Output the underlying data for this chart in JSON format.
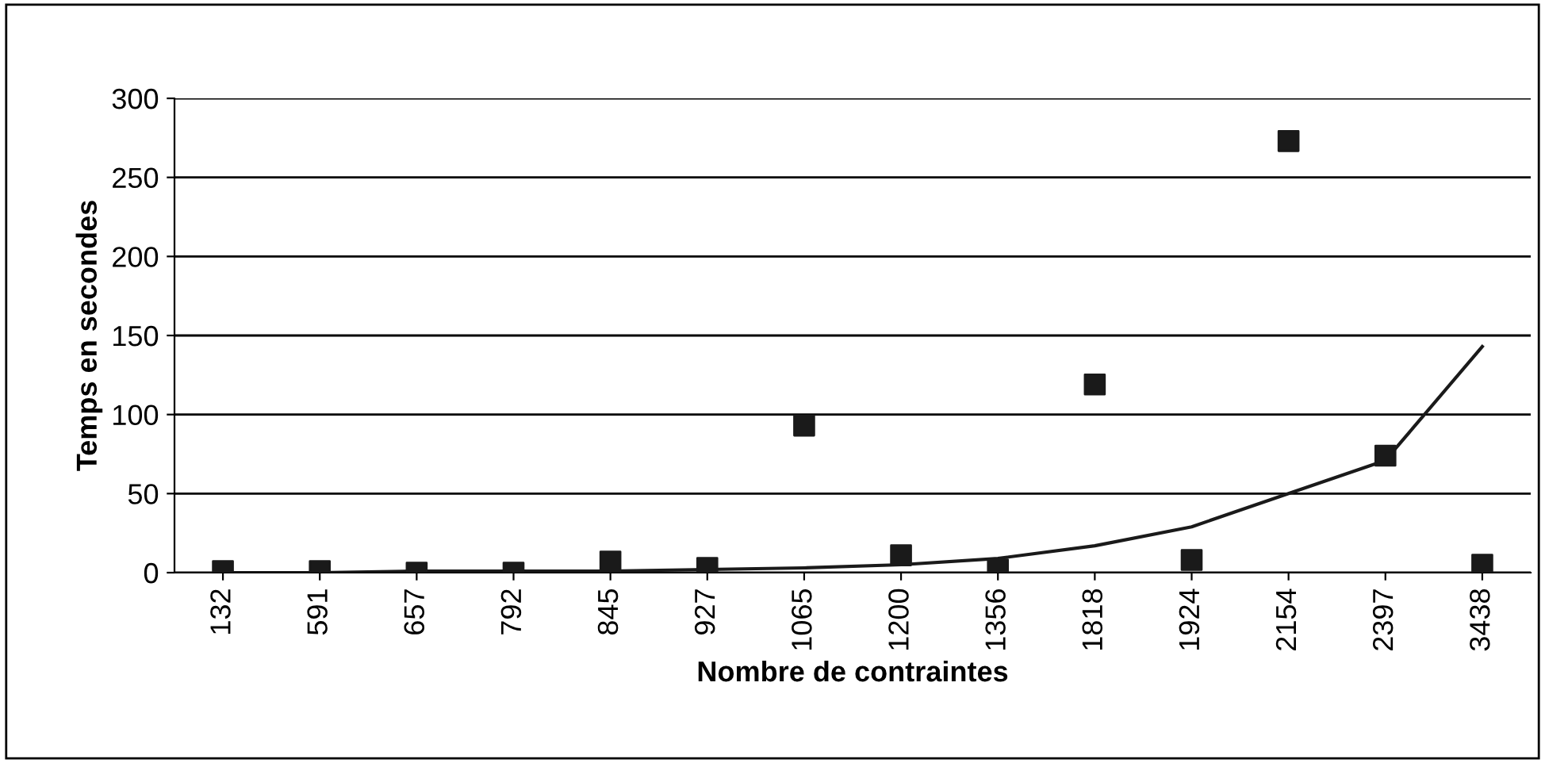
{
  "chart_data": {
    "type": "scatter",
    "xlabel": "Nombre de contraintes",
    "ylabel": "Temps en secondes",
    "categories": [
      "132",
      "591",
      "657",
      "792",
      "845",
      "927",
      "1065",
      "1200",
      "1356",
      "1818",
      "1924",
      "2154",
      "2397",
      "3438"
    ],
    "series": [
      {
        "color": "#1a1a1a",
        "marker": "square",
        "values": [
          1,
          1,
          0,
          0,
          7,
          3,
          93,
          11,
          2,
          119,
          8,
          273,
          74,
          5
        ]
      },
      {
        "type": "line",
        "color": "#1a1a1a",
        "marker": "none",
        "line_style": "solid",
        "values": [
          0,
          0,
          1,
          1,
          1,
          2,
          3,
          5,
          9,
          17,
          29,
          50,
          71,
          143
        ]
      }
    ],
    "ylim": [
      0,
      300
    ],
    "yticks": [
      0,
      50,
      100,
      150,
      200,
      250,
      300
    ],
    "grid": "y"
  }
}
